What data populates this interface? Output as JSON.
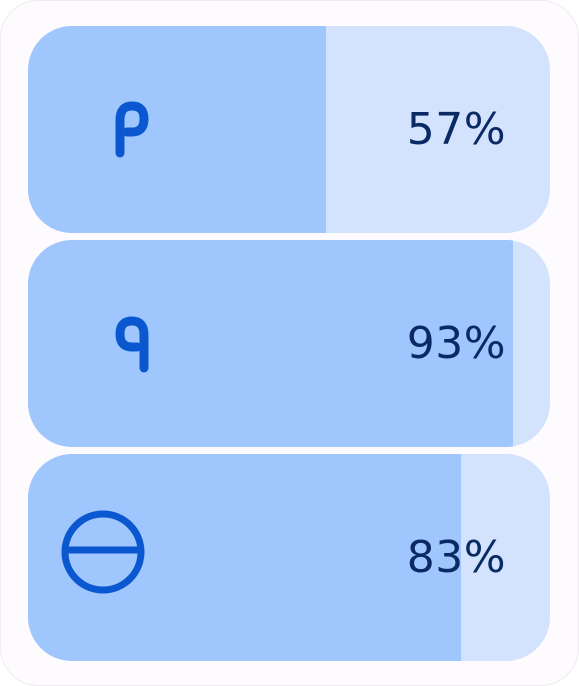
{
  "rows": [
    {
      "icon": "earbud-left-icon",
      "level": 0.57,
      "label": "57%"
    },
    {
      "icon": "earbud-right-icon",
      "level": 0.93,
      "label": "93%"
    },
    {
      "icon": "charging-case-icon",
      "level": 0.83,
      "label": "83%"
    }
  ],
  "colors": {
    "track": "#d3e3fd",
    "fill": "#9fc6fd",
    "icon": "#0b57d0",
    "text": "#0a2a66"
  }
}
